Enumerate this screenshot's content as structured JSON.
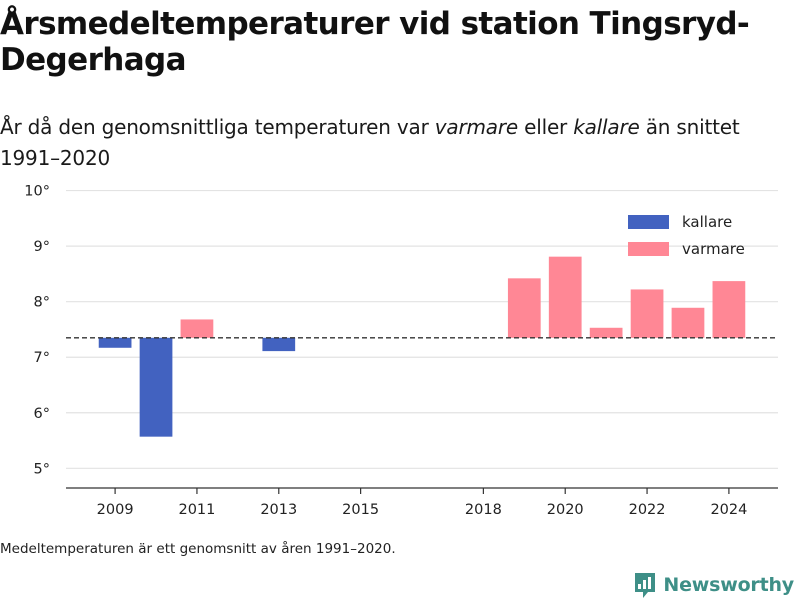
{
  "title": "Årsmedeltemperaturer vid station Tingsryd-Degerhaga",
  "subtitle": {
    "part1": "År då den genomsnittliga temperaturen var ",
    "em1": "varmare",
    "part2": " eller ",
    "em2": "kallare",
    "part3": " än snittet 1991–2020"
  },
  "footnote": "Medeltemperaturen är ett genomsnitt av åren 1991–2020.",
  "brand": {
    "name": "Newsworthy",
    "icon": "newsworthy-logo-icon"
  },
  "colors": {
    "kallare": "#4262c0",
    "varmare": "#ff8795",
    "grid": "#e3e3e3",
    "baseline": "#333333",
    "brand": "#3e8f87"
  },
  "chart_data": {
    "type": "bar",
    "baseline": 7.35,
    "ylim": [
      4.7,
      10.1
    ],
    "yticks": [
      5,
      6,
      7,
      8,
      9,
      10
    ],
    "ytick_suffix": "°",
    "xlim": [
      2007.8,
      2025.2
    ],
    "xticks": [
      2009,
      2011,
      2013,
      2015,
      2018,
      2020,
      2022,
      2024
    ],
    "legend": [
      {
        "label": "kallare",
        "color": "#4262c0"
      },
      {
        "label": "varmare",
        "color": "#ff8795"
      }
    ],
    "legend_position": "top-right",
    "grid": true,
    "bars": [
      {
        "year": 2009,
        "value": 7.17,
        "category": "kallare"
      },
      {
        "year": 2010,
        "value": 5.57,
        "category": "kallare"
      },
      {
        "year": 2011,
        "value": 7.68,
        "category": "varmare"
      },
      {
        "year": 2013,
        "value": 7.11,
        "category": "kallare"
      },
      {
        "year": 2019,
        "value": 8.42,
        "category": "varmare"
      },
      {
        "year": 2020,
        "value": 8.81,
        "category": "varmare"
      },
      {
        "year": 2021,
        "value": 7.53,
        "category": "varmare"
      },
      {
        "year": 2022,
        "value": 8.22,
        "category": "varmare"
      },
      {
        "year": 2023,
        "value": 7.89,
        "category": "varmare"
      },
      {
        "year": 2024,
        "value": 8.37,
        "category": "varmare"
      }
    ]
  }
}
